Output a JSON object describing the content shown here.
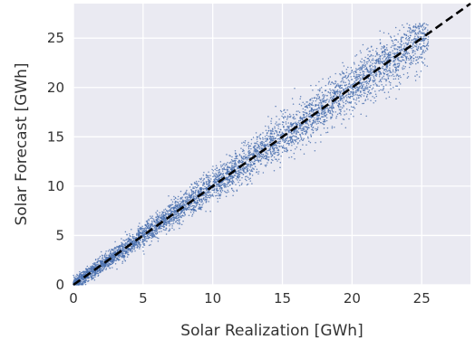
{
  "chart_data": {
    "type": "scatter",
    "title": "",
    "xlabel": "Solar Realization [GWh]",
    "ylabel": "Solar Forecast [GWh]",
    "xlim": [
      0,
      28.5
    ],
    "ylim": [
      0,
      28.5
    ],
    "xticks": [
      0,
      5,
      10,
      15,
      20,
      25
    ],
    "yticks": [
      0,
      5,
      10,
      15,
      20,
      25
    ],
    "grid": true,
    "style": "seaborn-darkgrid",
    "series": [
      {
        "kind": "scatter",
        "color": "#4c72b0",
        "description_points": "dense cloud of ~6000 small points clustered along the diagonal, spread growing with magnitude",
        "points": [
          [
            0.2,
            0.3
          ],
          [
            0.5,
            0.4
          ],
          [
            0.8,
            1.0
          ],
          [
            1.0,
            0.7
          ],
          [
            1.3,
            1.6
          ],
          [
            1.6,
            1.4
          ],
          [
            2.0,
            2.3
          ],
          [
            2.3,
            1.9
          ],
          [
            2.6,
            2.9
          ],
          [
            3.0,
            3.3
          ],
          [
            3.2,
            2.6
          ],
          [
            3.5,
            3.9
          ],
          [
            3.8,
            3.4
          ],
          [
            4.1,
            4.5
          ],
          [
            4.5,
            4.1
          ],
          [
            4.8,
            5.3
          ],
          [
            5.0,
            4.6
          ],
          [
            5.3,
            5.8
          ],
          [
            5.6,
            5.2
          ],
          [
            6.0,
            6.5
          ],
          [
            6.2,
            5.7
          ],
          [
            6.5,
            7.0
          ],
          [
            6.9,
            6.4
          ],
          [
            7.2,
            7.8
          ],
          [
            7.5,
            7.0
          ],
          [
            7.8,
            8.4
          ],
          [
            8.1,
            7.6
          ],
          [
            8.5,
            9.1
          ],
          [
            8.8,
            8.3
          ],
          [
            9.1,
            9.7
          ],
          [
            9.5,
            8.9
          ],
          [
            9.8,
            10.5
          ],
          [
            10.1,
            9.6
          ],
          [
            10.5,
            11.1
          ],
          [
            10.8,
            10.2
          ],
          [
            11.2,
            11.9
          ],
          [
            11.5,
            10.9
          ],
          [
            11.9,
            12.6
          ],
          [
            12.2,
            11.6
          ],
          [
            12.6,
            13.3
          ],
          [
            13.0,
            12.3
          ],
          [
            13.3,
            14.1
          ],
          [
            13.7,
            13.0
          ],
          [
            14.1,
            14.8
          ],
          [
            14.4,
            13.8
          ],
          [
            14.8,
            15.5
          ],
          [
            15.2,
            14.5
          ],
          [
            15.6,
            16.3
          ],
          [
            16.0,
            15.3
          ],
          [
            16.3,
            17.0
          ],
          [
            16.7,
            16.0
          ],
          [
            17.1,
            17.9
          ],
          [
            17.5,
            16.8
          ],
          [
            17.9,
            18.6
          ],
          [
            18.3,
            17.6
          ],
          [
            18.7,
            19.4
          ],
          [
            19.1,
            18.3
          ],
          [
            19.5,
            20.2
          ],
          [
            19.9,
            19.1
          ],
          [
            20.3,
            21.0
          ],
          [
            20.7,
            19.9
          ],
          [
            21.1,
            21.8
          ],
          [
            21.5,
            20.7
          ],
          [
            21.9,
            22.6
          ],
          [
            22.3,
            21.4
          ],
          [
            22.7,
            23.3
          ],
          [
            23.1,
            22.3
          ],
          [
            23.5,
            24.1
          ],
          [
            23.9,
            23.0
          ],
          [
            24.3,
            24.8
          ],
          [
            24.7,
            23.8
          ],
          [
            25.1,
            25.5
          ]
        ]
      },
      {
        "kind": "line",
        "style": "dashed",
        "color": "#000000",
        "x": [
          0,
          28.5
        ],
        "y": [
          0,
          28.5
        ]
      }
    ]
  },
  "colors": {
    "plot_background": "#eaeaf2",
    "grid": "#ffffff",
    "points": "#4c72b0",
    "diagonal": "#000000"
  }
}
